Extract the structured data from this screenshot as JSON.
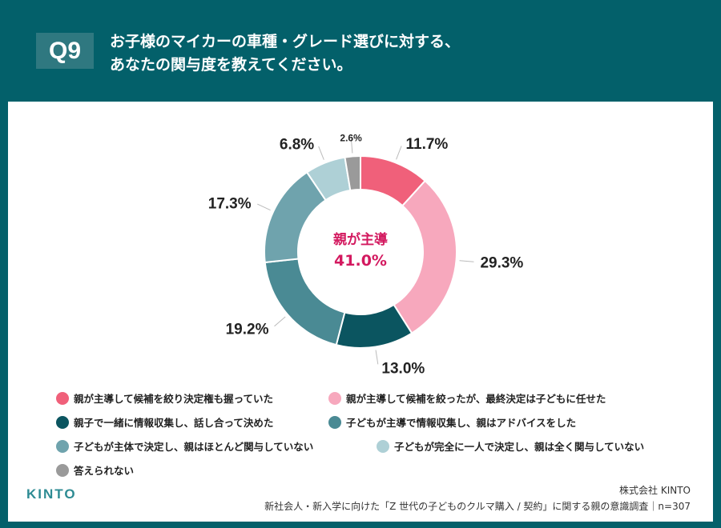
{
  "header": {
    "badge": "Q9",
    "title_line1": "お子様のマイカーの車種・グレード選びに対する、",
    "title_line2": "あなたの関与度を教えてください。"
  },
  "chart_data": {
    "type": "pie",
    "donut": true,
    "center_label": {
      "line1": "親が主導",
      "line2": "41.0%",
      "color": "#d3195f"
    },
    "slices": [
      {
        "name": "親が主導して候補を絞り決定権も握っていた",
        "value": 11.7,
        "label": "11.7%",
        "color": "#f0607a"
      },
      {
        "name": "親が主導して候補を絞ったが、最終決定は子どもに任せた",
        "value": 29.3,
        "label": "29.3%",
        "color": "#f7a8bd"
      },
      {
        "name": "親子で一緒に情報収集し、話し合って決めた",
        "value": 13.0,
        "label": "13.0%",
        "color": "#0b5560"
      },
      {
        "name": "子どもが主導で情報収集し、親はアドバイスをした",
        "value": 19.2,
        "label": "19.2%",
        "color": "#4a8a94"
      },
      {
        "name": "子どもが主体で決定し、親はほとんど関与していない",
        "value": 17.3,
        "label": "17.3%",
        "color": "#6fa3ad"
      },
      {
        "name": "子どもが完全に一人で決定し、親は全く関与していない",
        "value": 6.8,
        "label": "6.8%",
        "color": "#aed0d6"
      },
      {
        "name": "答えられない",
        "value": 2.6,
        "label": "2.6%",
        "color": "#9a9a9a"
      }
    ],
    "legend_placement": "bottom"
  },
  "footer": {
    "logo": "KINTO",
    "company": "株式会社 KINTO",
    "survey": "新社会人・新入学に向けた「Z 世代の子どものクルマ購入 / 契約」に関する親の意識調査｜n=307"
  }
}
